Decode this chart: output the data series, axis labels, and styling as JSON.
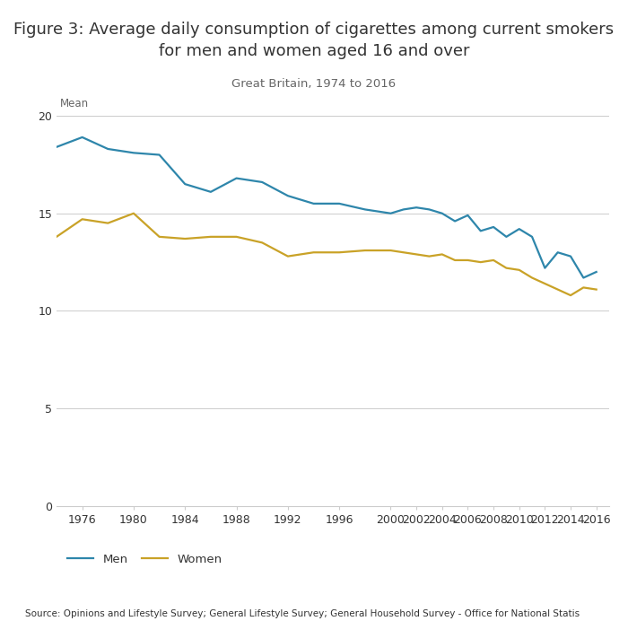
{
  "title": "Figure 3: Average daily consumption of cigarettes among current smokers\nfor men and women aged 16 and over",
  "subtitle": "Great Britain, 1974 to 2016",
  "mean_label": "Mean",
  "source": "Source: Opinions and Lifestyle Survey; General Lifestyle Survey; General Household Survey - Office for National Statis",
  "men_x": [
    1974,
    1976,
    1978,
    1980,
    1982,
    1984,
    1986,
    1988,
    1990,
    1992,
    1994,
    1996,
    1998,
    2000,
    2001,
    2002,
    2003,
    2004,
    2005,
    2006,
    2007,
    2008,
    2009,
    2010,
    2011,
    2012,
    2013,
    2014,
    2015,
    2016
  ],
  "men_y": [
    18.4,
    18.9,
    18.3,
    18.1,
    18.0,
    16.5,
    16.1,
    16.8,
    16.6,
    15.9,
    15.5,
    15.5,
    15.2,
    15.0,
    15.2,
    15.3,
    15.2,
    15.0,
    14.6,
    14.9,
    14.1,
    14.3,
    13.8,
    14.2,
    13.8,
    12.2,
    13.0,
    12.8,
    11.7,
    12.0
  ],
  "women_x": [
    1974,
    1976,
    1978,
    1980,
    1982,
    1984,
    1986,
    1988,
    1990,
    1992,
    1994,
    1996,
    1998,
    2000,
    2001,
    2002,
    2003,
    2004,
    2005,
    2006,
    2007,
    2008,
    2009,
    2010,
    2011,
    2012,
    2013,
    2014,
    2015,
    2016
  ],
  "women_y": [
    13.8,
    14.7,
    14.5,
    15.0,
    13.8,
    13.7,
    13.8,
    13.8,
    13.5,
    12.8,
    13.0,
    13.0,
    13.1,
    13.1,
    13.0,
    12.9,
    12.8,
    12.9,
    12.6,
    12.6,
    12.5,
    12.6,
    12.2,
    12.1,
    11.7,
    11.4,
    11.1,
    10.8,
    11.2,
    11.1
  ],
  "men_color": "#2e86ab",
  "women_color": "#c9a227",
  "grid_color": "#cccccc",
  "title_fontsize": 13,
  "subtitle_fontsize": 9.5,
  "axis_tick_fontsize": 9,
  "ylim": [
    0,
    21
  ],
  "yticks": [
    0,
    5,
    10,
    15,
    20
  ],
  "xticks": [
    1976,
    1980,
    1984,
    1988,
    1992,
    1996,
    2000,
    2002,
    2004,
    2006,
    2008,
    2010,
    2012,
    2014,
    2016
  ],
  "legend_men": "Men",
  "legend_women": "Women",
  "legend_fontsize": 9.5,
  "source_fontsize": 7.5,
  "text_color": "#333333",
  "light_text_color": "#666666"
}
